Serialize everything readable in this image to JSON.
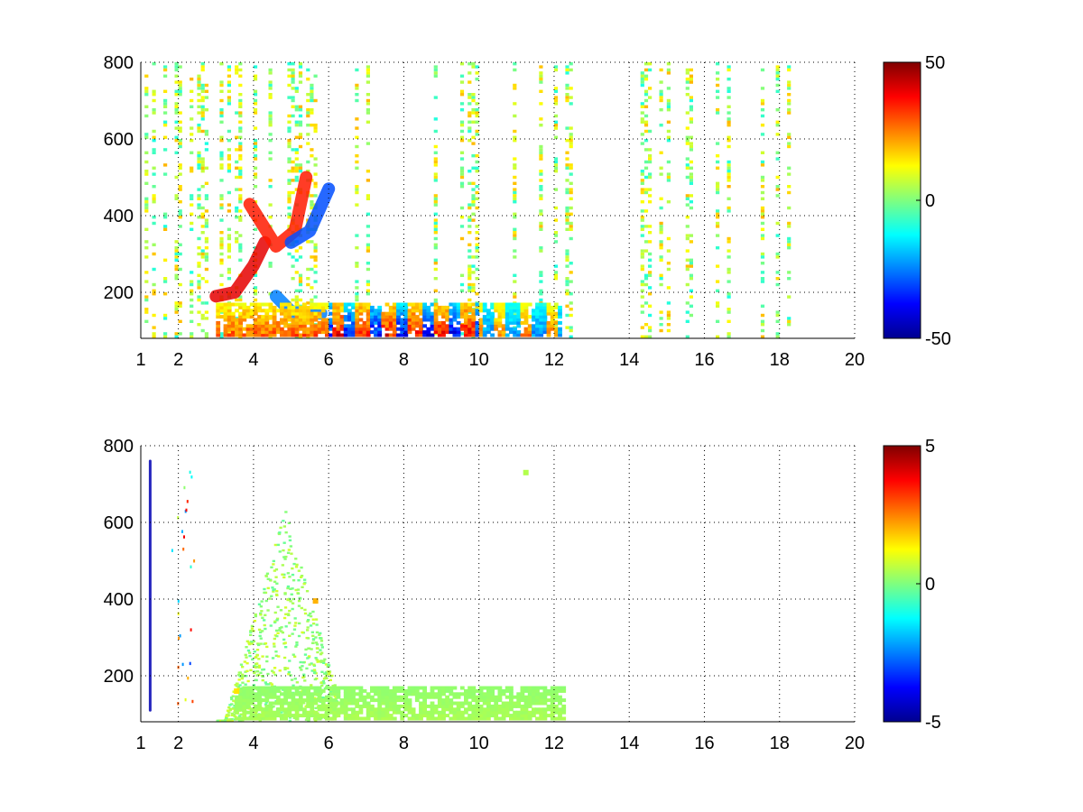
{
  "chart_data": [
    {
      "type": "heatmap",
      "title": "",
      "xlabel": "",
      "ylabel": "",
      "xlim": [
        1,
        20
      ],
      "ylim": [
        80,
        800
      ],
      "x_ticks": [
        "1",
        "2",
        "4",
        "6",
        "8",
        "10",
        "12",
        "14",
        "16",
        "18",
        "20"
      ],
      "x_tick_values": [
        1,
        2,
        4,
        6,
        8,
        10,
        12,
        14,
        16,
        18,
        20
      ],
      "y_ticks": [
        "200",
        "400",
        "600",
        "800"
      ],
      "y_tick_values": [
        200,
        400,
        600,
        800
      ],
      "grid": true,
      "grid_style": "dotted",
      "colormap": "jet",
      "colorbar": {
        "range": [
          -50,
          50
        ],
        "ticks": [
          "50",
          "0",
          "-50"
        ],
        "tick_values": [
          50,
          0,
          -50
        ]
      },
      "features": [
        {
          "kind": "arc",
          "x": [
            3.0,
            3.5,
            4.0,
            4.3
          ],
          "y": [
            190,
            200,
            270,
            330
          ],
          "value": 40
        },
        {
          "kind": "arc",
          "x": [
            3.9,
            4.6,
            5.1,
            5.4
          ],
          "y": [
            430,
            320,
            360,
            500
          ],
          "value": 35
        },
        {
          "kind": "arc",
          "x": [
            5.0,
            5.5,
            6.0
          ],
          "y": [
            330,
            360,
            470
          ],
          "value": -30
        },
        {
          "kind": "arc",
          "x": [
            4.6,
            5.0,
            5.8
          ],
          "y": [
            190,
            150,
            145
          ],
          "value": -25
        },
        {
          "kind": "band",
          "x_range": [
            3.0,
            6.0
          ],
          "y_range": [
            85,
            175
          ],
          "value": 35,
          "alternating": false
        },
        {
          "kind": "band",
          "x_range": [
            6.0,
            10.0
          ],
          "y_range": [
            85,
            175
          ],
          "value": 45,
          "alternating": true
        },
        {
          "kind": "band",
          "x_range": [
            10.0,
            12.2
          ],
          "y_range": [
            85,
            175
          ],
          "value": -30,
          "alternating": true
        }
      ]
    },
    {
      "type": "heatmap",
      "title": "",
      "xlabel": "",
      "ylabel": "",
      "xlim": [
        1,
        20
      ],
      "ylim": [
        80,
        800
      ],
      "x_ticks": [
        "1",
        "2",
        "4",
        "6",
        "8",
        "10",
        "12",
        "14",
        "16",
        "18",
        "20"
      ],
      "x_tick_values": [
        1,
        2,
        4,
        6,
        8,
        10,
        12,
        14,
        16,
        18,
        20
      ],
      "y_ticks": [
        "200",
        "400",
        "600",
        "800"
      ],
      "y_tick_values": [
        200,
        400,
        600,
        800
      ],
      "grid": true,
      "grid_style": "dotted",
      "colormap": "jet",
      "colorbar": {
        "range": [
          -5,
          5
        ],
        "ticks": [
          "5",
          "0",
          "-5"
        ],
        "tick_values": [
          5,
          0,
          -5
        ]
      },
      "features": [
        {
          "kind": "line",
          "x": [
            1.25,
            1.25
          ],
          "y": [
            110,
            760
          ],
          "value": -4.5
        },
        {
          "kind": "region",
          "x_range": [
            3.0,
            6.2
          ],
          "y_range": [
            85,
            640
          ],
          "value": 0.3
        },
        {
          "kind": "band",
          "x_range": [
            3.5,
            12.3
          ],
          "y_range": [
            85,
            175
          ],
          "value": 0.5,
          "alternating": false
        },
        {
          "kind": "spot",
          "x": 11.25,
          "y": 730,
          "value": 0.5
        },
        {
          "kind": "spot",
          "x": 5.65,
          "y": 395,
          "value": 2.0
        },
        {
          "kind": "spot",
          "x": 3.55,
          "y": 160,
          "value": 1.5
        }
      ]
    }
  ]
}
